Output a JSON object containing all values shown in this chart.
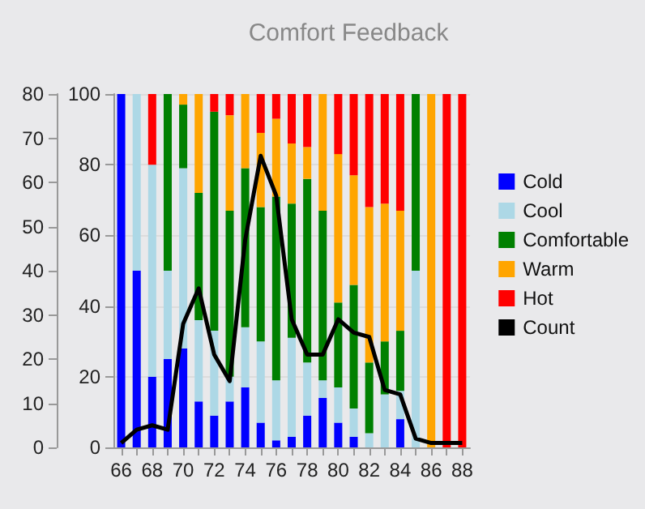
{
  "chart_data": {
    "type": "bar",
    "title": "Comfort Feedback",
    "stacked": true,
    "categories": [
      "66",
      null,
      "68",
      null,
      "70",
      null,
      "72",
      null,
      "74",
      null,
      "76",
      null,
      "78",
      null,
      "80",
      null,
      "82",
      null,
      "84",
      null,
      "86",
      null,
      "88"
    ],
    "series": [
      {
        "name": "Cold",
        "color": "#0000ff",
        "values": [
          100,
          50,
          20,
          25,
          28,
          13,
          9,
          13,
          17,
          7,
          2,
          3,
          9,
          14,
          7,
          3,
          0,
          0,
          8,
          0,
          0,
          0,
          0
        ]
      },
      {
        "name": "Cool",
        "color": "#add8e6",
        "values": [
          0,
          50,
          60,
          25,
          51,
          23,
          24,
          7,
          17,
          23,
          17,
          28,
          15,
          5,
          10,
          8,
          4,
          15,
          8,
          50,
          0,
          0,
          0
        ]
      },
      {
        "name": "Comfortable",
        "color": "#008000",
        "values": [
          0,
          0,
          0,
          50,
          18,
          36,
          62,
          47,
          45,
          38,
          52,
          38,
          52,
          48,
          24,
          35,
          20,
          15,
          17,
          50,
          0,
          0,
          0
        ]
      },
      {
        "name": "Warm",
        "color": "#ffa500",
        "values": [
          0,
          0,
          0,
          0,
          3,
          28,
          0,
          27,
          21,
          21,
          22,
          17,
          9,
          33,
          42,
          31,
          44,
          39,
          34,
          0,
          100,
          0,
          0
        ]
      },
      {
        "name": "Hot",
        "color": "#ff0000",
        "values": [
          0,
          0,
          20,
          0,
          0,
          0,
          5,
          6,
          0,
          11,
          7,
          14,
          15,
          0,
          17,
          23,
          32,
          31,
          33,
          0,
          0,
          100,
          100
        ]
      },
      {
        "name": "Count",
        "type": "line",
        "axis": "y2",
        "color": "#000000",
        "values": [
          1,
          4,
          5,
          4,
          28,
          36,
          21,
          15,
          47,
          66,
          57,
          29,
          21,
          21,
          29,
          26,
          25,
          13,
          12,
          2,
          1,
          1,
          1
        ]
      }
    ],
    "ylim": [
      0,
      100
    ],
    "yticks": [
      0,
      20,
      40,
      60,
      80,
      100
    ],
    "y2lim": [
      0,
      80
    ],
    "y2ticks": [
      0,
      10,
      20,
      30,
      40,
      50,
      60,
      70,
      80
    ],
    "grid": "y",
    "legend": "right",
    "marker": "none"
  }
}
